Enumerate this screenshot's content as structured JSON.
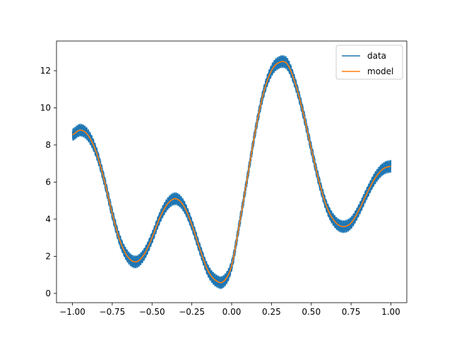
{
  "chart_data": {
    "type": "line",
    "title": "",
    "xlabel": "",
    "ylabel": "",
    "xlim": [
      -1.1,
      1.1
    ],
    "ylim": [
      -0.5,
      13.6
    ],
    "x_ticks": [
      -1.0,
      -0.75,
      -0.5,
      -0.25,
      0.0,
      0.25,
      0.5,
      0.75,
      1.0
    ],
    "x_tick_labels": [
      "−1.00",
      "−0.75",
      "−0.50",
      "−0.25",
      "0.00",
      "0.25",
      "0.50",
      "0.75",
      "1.00"
    ],
    "y_ticks": [
      0,
      2,
      4,
      6,
      8,
      10,
      12
    ],
    "y_tick_labels": [
      "0",
      "2",
      "4",
      "6",
      "8",
      "10",
      "12"
    ],
    "grid": false,
    "legend": {
      "position": "top-right",
      "entries": [
        "data",
        "model"
      ]
    },
    "series": [
      {
        "name": "data",
        "color": "#1f77b4",
        "style": "dense noisy band around model curve",
        "noise_amplitude": 0.35,
        "x": [
          -1.0,
          -0.95,
          -0.9,
          -0.85,
          -0.8,
          -0.75,
          -0.7,
          -0.65,
          -0.6,
          -0.55,
          -0.5,
          -0.45,
          -0.4,
          -0.35,
          -0.3,
          -0.25,
          -0.2,
          -0.15,
          -0.1,
          -0.05,
          0.0,
          0.05,
          0.1,
          0.15,
          0.2,
          0.25,
          0.3,
          0.35,
          0.4,
          0.45,
          0.5,
          0.55,
          0.6,
          0.65,
          0.7,
          0.75,
          0.8,
          0.85,
          0.9,
          0.95,
          1.0
        ],
        "y": [
          8.55,
          8.8,
          8.5,
          7.6,
          6.1,
          4.3,
          2.8,
          1.95,
          1.7,
          2.1,
          3.0,
          4.1,
          4.85,
          5.1,
          4.7,
          3.7,
          2.4,
          1.25,
          0.7,
          0.65,
          1.5,
          3.8,
          6.3,
          8.8,
          10.8,
          12.0,
          12.45,
          12.35,
          11.3,
          9.7,
          7.8,
          6.0,
          4.6,
          3.85,
          3.6,
          3.8,
          4.5,
          5.4,
          6.2,
          6.7,
          6.85
        ]
      },
      {
        "name": "model",
        "color": "#ff7f0e",
        "x": [
          -1.0,
          -0.95,
          -0.9,
          -0.85,
          -0.8,
          -0.75,
          -0.7,
          -0.65,
          -0.6,
          -0.55,
          -0.5,
          -0.45,
          -0.4,
          -0.35,
          -0.3,
          -0.25,
          -0.2,
          -0.15,
          -0.1,
          -0.05,
          0.0,
          0.05,
          0.1,
          0.15,
          0.2,
          0.25,
          0.3,
          0.35,
          0.4,
          0.45,
          0.5,
          0.55,
          0.6,
          0.65,
          0.7,
          0.75,
          0.8,
          0.85,
          0.9,
          0.95,
          1.0
        ],
        "y": [
          8.55,
          8.8,
          8.5,
          7.6,
          6.1,
          4.3,
          2.8,
          1.95,
          1.7,
          2.1,
          3.0,
          4.1,
          4.85,
          5.1,
          4.7,
          3.7,
          2.4,
          1.25,
          0.7,
          0.65,
          1.5,
          3.8,
          6.3,
          8.8,
          10.8,
          12.0,
          12.45,
          12.35,
          11.3,
          9.7,
          7.8,
          6.0,
          4.6,
          3.85,
          3.6,
          3.8,
          4.5,
          5.4,
          6.2,
          6.7,
          6.85
        ]
      }
    ]
  }
}
